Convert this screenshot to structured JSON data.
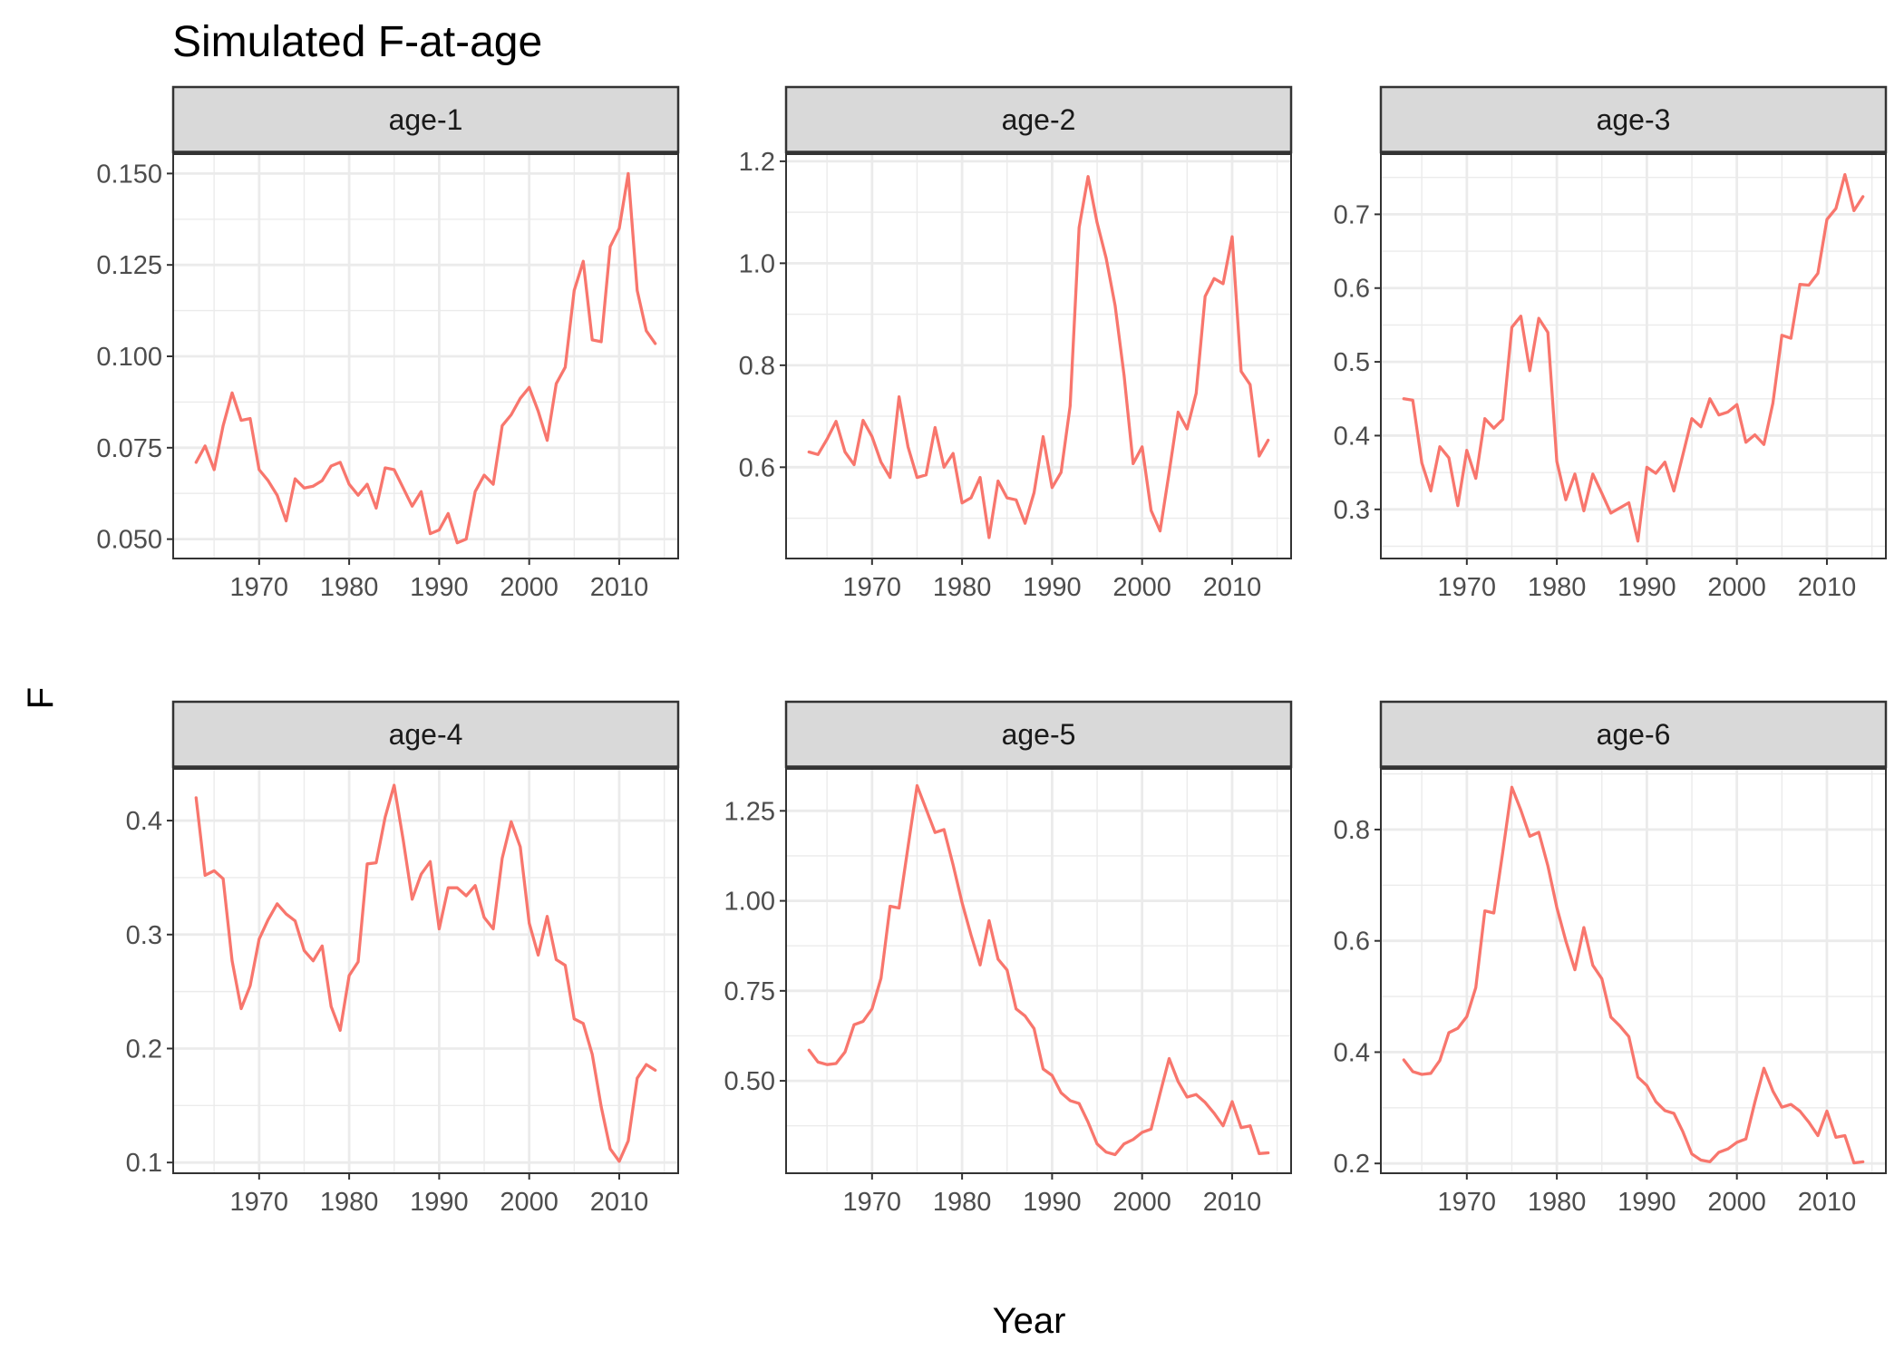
{
  "title": "Simulated F-at-age",
  "xlabel": "Year",
  "ylabel": "F",
  "colors": {
    "series": "#F8766D"
  },
  "chart_data": {
    "type": "line",
    "title": "Simulated F-at-age",
    "xlabel": "Year",
    "ylabel": "F",
    "grid": true,
    "legend": "none",
    "x": [
      1963,
      1964,
      1965,
      1966,
      1967,
      1968,
      1969,
      1970,
      1971,
      1972,
      1973,
      1974,
      1975,
      1976,
      1977,
      1978,
      1979,
      1980,
      1981,
      1982,
      1983,
      1984,
      1985,
      1986,
      1987,
      1988,
      1989,
      1990,
      1991,
      1992,
      1993,
      1994,
      1995,
      1996,
      1997,
      1998,
      1999,
      2000,
      2001,
      2002,
      2003,
      2004,
      2005,
      2006,
      2007,
      2008,
      2009,
      2010,
      2011,
      2012,
      2013,
      2014
    ],
    "x_ticks": [
      1970,
      1980,
      1990,
      2000,
      2010
    ],
    "xlim": [
      1960.45,
      2016.55
    ],
    "panels": [
      {
        "strip": "age-1",
        "ylim": [
          0.0447,
          0.1553
        ],
        "y_ticks": [
          0.05,
          0.075,
          0.1,
          0.125,
          0.15
        ],
        "y_tick_labels": [
          "0.050",
          "0.075",
          "0.100",
          "0.125",
          "0.150"
        ],
        "values": [
          0.071,
          0.0755,
          0.069,
          0.081,
          0.09,
          0.0825,
          0.083,
          0.069,
          0.066,
          0.062,
          0.055,
          0.0665,
          0.064,
          0.0645,
          0.066,
          0.07,
          0.071,
          0.065,
          0.062,
          0.065,
          0.0585,
          0.0695,
          0.069,
          0.064,
          0.059,
          0.063,
          0.0515,
          0.0525,
          0.057,
          0.049,
          0.05,
          0.063,
          0.0675,
          0.065,
          0.081,
          0.084,
          0.0885,
          0.0915,
          0.085,
          0.077,
          0.0925,
          0.097,
          0.118,
          0.126,
          0.1045,
          0.104,
          0.13,
          0.135,
          0.15,
          0.118,
          0.107,
          0.1035
        ]
      },
      {
        "strip": "age-2",
        "ylim": [
          0.421,
          1.214
        ],
        "y_ticks": [
          0.6,
          0.8,
          1.0,
          1.2
        ],
        "y_tick_labels": [
          "0.6",
          "0.8",
          "1.0",
          "1.2"
        ],
        "values": [
          0.63,
          0.625,
          0.655,
          0.69,
          0.63,
          0.605,
          0.692,
          0.66,
          0.61,
          0.58,
          0.738,
          0.64,
          0.58,
          0.585,
          0.678,
          0.6,
          0.627,
          0.53,
          0.54,
          0.58,
          0.462,
          0.573,
          0.54,
          0.536,
          0.49,
          0.55,
          0.66,
          0.56,
          0.59,
          0.72,
          1.07,
          1.17,
          1.08,
          1.01,
          0.917,
          0.78,
          0.607,
          0.64,
          0.515,
          0.475,
          0.59,
          0.708,
          0.675,
          0.745,
          0.935,
          0.97,
          0.96,
          1.052,
          0.788,
          0.762,
          0.622,
          0.653
        ]
      },
      {
        "strip": "age-3",
        "ylim": [
          0.2334,
          0.7816
        ],
        "y_ticks": [
          0.3,
          0.4,
          0.5,
          0.6,
          0.7
        ],
        "y_tick_labels": [
          "0.3",
          "0.4",
          "0.5",
          "0.6",
          "0.7"
        ],
        "values": [
          0.45,
          0.448,
          0.363,
          0.325,
          0.385,
          0.37,
          0.305,
          0.38,
          0.342,
          0.423,
          0.41,
          0.422,
          0.547,
          0.562,
          0.488,
          0.559,
          0.54,
          0.365,
          0.313,
          0.348,
          0.298,
          0.348,
          0.322,
          0.295,
          0.302,
          0.309,
          0.257,
          0.357,
          0.349,
          0.364,
          0.325,
          0.374,
          0.423,
          0.412,
          0.45,
          0.428,
          0.432,
          0.442,
          0.391,
          0.401,
          0.388,
          0.444,
          0.536,
          0.532,
          0.605,
          0.604,
          0.62,
          0.693,
          0.708,
          0.754,
          0.705,
          0.724
        ]
      },
      {
        "strip": "age-4",
        "ylim": [
          0.0906,
          0.4454
        ],
        "y_ticks": [
          0.1,
          0.2,
          0.3,
          0.4
        ],
        "y_tick_labels": [
          "0.1",
          "0.2",
          "0.3",
          "0.4"
        ],
        "values": [
          0.42,
          0.352,
          0.356,
          0.349,
          0.277,
          0.235,
          0.255,
          0.296,
          0.313,
          0.327,
          0.318,
          0.312,
          0.286,
          0.277,
          0.29,
          0.237,
          0.216,
          0.264,
          0.276,
          0.362,
          0.363,
          0.403,
          0.431,
          0.383,
          0.331,
          0.353,
          0.364,
          0.305,
          0.341,
          0.341,
          0.334,
          0.343,
          0.315,
          0.305,
          0.367,
          0.399,
          0.377,
          0.31,
          0.282,
          0.316,
          0.278,
          0.273,
          0.226,
          0.222,
          0.195,
          0.149,
          0.112,
          0.101,
          0.119,
          0.174,
          0.186,
          0.181
        ]
      },
      {
        "strip": "age-5",
        "ylim": [
          0.2433,
          1.3667
        ],
        "y_ticks": [
          0.5,
          0.75,
          1.0,
          1.25
        ],
        "y_tick_labels": [
          "0.50",
          "0.75",
          "1.00",
          "1.25"
        ],
        "values": [
          0.585,
          0.552,
          0.545,
          0.548,
          0.58,
          0.656,
          0.665,
          0.7,
          0.785,
          0.985,
          0.98,
          1.15,
          1.32,
          1.255,
          1.19,
          1.198,
          1.1,
          0.995,
          0.905,
          0.822,
          0.945,
          0.838,
          0.808,
          0.7,
          0.68,
          0.645,
          0.533,
          0.515,
          0.467,
          0.445,
          0.437,
          0.385,
          0.325,
          0.302,
          0.295,
          0.325,
          0.337,
          0.357,
          0.366,
          0.465,
          0.562,
          0.498,
          0.455,
          0.462,
          0.44,
          0.41,
          0.375,
          0.442,
          0.37,
          0.375,
          0.298,
          0.3
        ]
      },
      {
        "strip": "age-6",
        "ylim": [
          0.1824,
          0.9091
        ],
        "y_ticks": [
          0.2,
          0.4,
          0.6,
          0.8
        ],
        "y_tick_labels": [
          "0.2",
          "0.4",
          "0.6",
          "0.8"
        ],
        "values": [
          0.386,
          0.365,
          0.36,
          0.362,
          0.385,
          0.435,
          0.443,
          0.464,
          0.516,
          0.654,
          0.65,
          0.76,
          0.876,
          0.835,
          0.788,
          0.795,
          0.735,
          0.66,
          0.6,
          0.548,
          0.624,
          0.556,
          0.532,
          0.463,
          0.447,
          0.428,
          0.355,
          0.34,
          0.311,
          0.295,
          0.29,
          0.257,
          0.217,
          0.206,
          0.203,
          0.22,
          0.226,
          0.238,
          0.244,
          0.31,
          0.371,
          0.33,
          0.301,
          0.306,
          0.294,
          0.274,
          0.25,
          0.294,
          0.247,
          0.25,
          0.201,
          0.203
        ]
      }
    ]
  }
}
